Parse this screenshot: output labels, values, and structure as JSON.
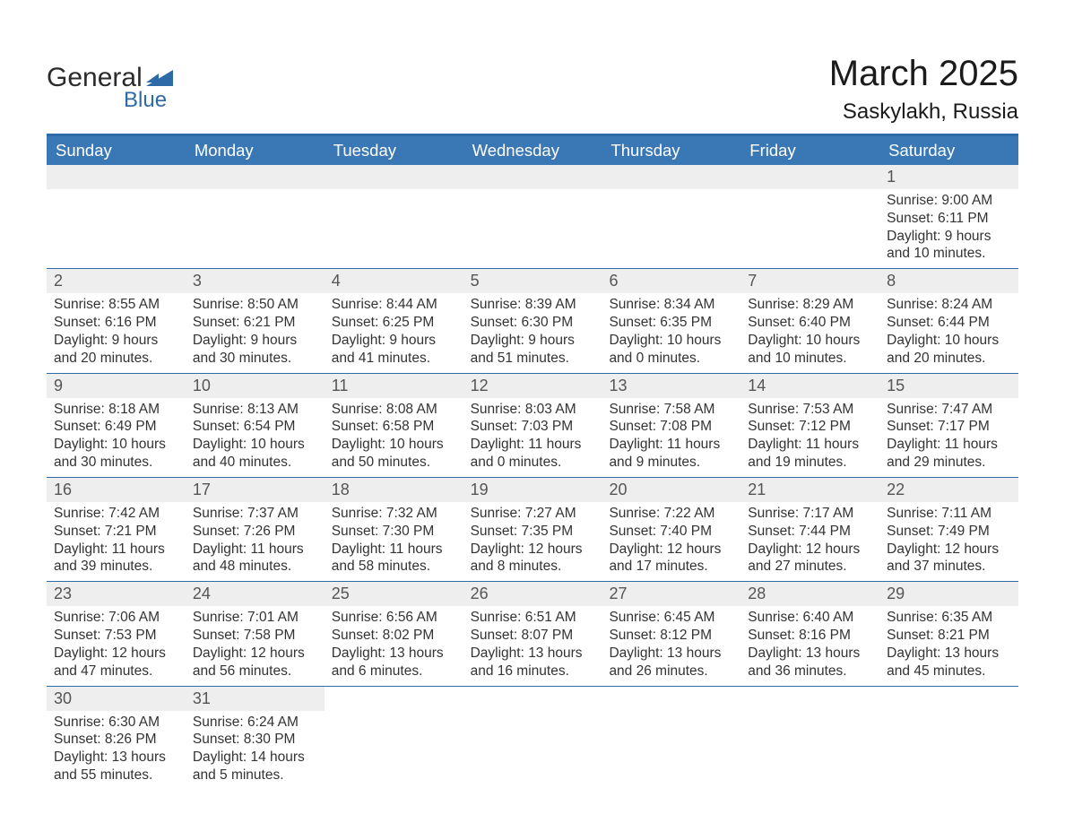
{
  "logo": {
    "text_top": "General",
    "text_bottom": "Blue",
    "mark_color": "#2f6aa8"
  },
  "title": {
    "month": "March 2025",
    "location": "Saskylakh, Russia"
  },
  "colors": {
    "header_bar": "#3a77b5",
    "header_rule": "#2f6aa8",
    "daynum_bg": "#eeeeee",
    "daynum_fg": "#555555",
    "body_fg": "#333333",
    "dow_fg": "#ffffff",
    "page_bg": "#ffffff"
  },
  "days_of_week": [
    "Sunday",
    "Monday",
    "Tuesday",
    "Wednesday",
    "Thursday",
    "Friday",
    "Saturday"
  ],
  "weeks": [
    [
      null,
      null,
      null,
      null,
      null,
      null,
      {
        "n": "1",
        "sunrise": "9:00 AM",
        "sunset": "6:11 PM",
        "daylight_h": "9",
        "daylight_m": "10"
      }
    ],
    [
      {
        "n": "2",
        "sunrise": "8:55 AM",
        "sunset": "6:16 PM",
        "daylight_h": "9",
        "daylight_m": "20"
      },
      {
        "n": "3",
        "sunrise": "8:50 AM",
        "sunset": "6:21 PM",
        "daylight_h": "9",
        "daylight_m": "30"
      },
      {
        "n": "4",
        "sunrise": "8:44 AM",
        "sunset": "6:25 PM",
        "daylight_h": "9",
        "daylight_m": "41"
      },
      {
        "n": "5",
        "sunrise": "8:39 AM",
        "sunset": "6:30 PM",
        "daylight_h": "9",
        "daylight_m": "51"
      },
      {
        "n": "6",
        "sunrise": "8:34 AM",
        "sunset": "6:35 PM",
        "daylight_h": "10",
        "daylight_m": "0"
      },
      {
        "n": "7",
        "sunrise": "8:29 AM",
        "sunset": "6:40 PM",
        "daylight_h": "10",
        "daylight_m": "10"
      },
      {
        "n": "8",
        "sunrise": "8:24 AM",
        "sunset": "6:44 PM",
        "daylight_h": "10",
        "daylight_m": "20"
      }
    ],
    [
      {
        "n": "9",
        "sunrise": "8:18 AM",
        "sunset": "6:49 PM",
        "daylight_h": "10",
        "daylight_m": "30"
      },
      {
        "n": "10",
        "sunrise": "8:13 AM",
        "sunset": "6:54 PM",
        "daylight_h": "10",
        "daylight_m": "40"
      },
      {
        "n": "11",
        "sunrise": "8:08 AM",
        "sunset": "6:58 PM",
        "daylight_h": "10",
        "daylight_m": "50"
      },
      {
        "n": "12",
        "sunrise": "8:03 AM",
        "sunset": "7:03 PM",
        "daylight_h": "11",
        "daylight_m": "0"
      },
      {
        "n": "13",
        "sunrise": "7:58 AM",
        "sunset": "7:08 PM",
        "daylight_h": "11",
        "daylight_m": "9"
      },
      {
        "n": "14",
        "sunrise": "7:53 AM",
        "sunset": "7:12 PM",
        "daylight_h": "11",
        "daylight_m": "19"
      },
      {
        "n": "15",
        "sunrise": "7:47 AM",
        "sunset": "7:17 PM",
        "daylight_h": "11",
        "daylight_m": "29"
      }
    ],
    [
      {
        "n": "16",
        "sunrise": "7:42 AM",
        "sunset": "7:21 PM",
        "daylight_h": "11",
        "daylight_m": "39"
      },
      {
        "n": "17",
        "sunrise": "7:37 AM",
        "sunset": "7:26 PM",
        "daylight_h": "11",
        "daylight_m": "48"
      },
      {
        "n": "18",
        "sunrise": "7:32 AM",
        "sunset": "7:30 PM",
        "daylight_h": "11",
        "daylight_m": "58"
      },
      {
        "n": "19",
        "sunrise": "7:27 AM",
        "sunset": "7:35 PM",
        "daylight_h": "12",
        "daylight_m": "8"
      },
      {
        "n": "20",
        "sunrise": "7:22 AM",
        "sunset": "7:40 PM",
        "daylight_h": "12",
        "daylight_m": "17"
      },
      {
        "n": "21",
        "sunrise": "7:17 AM",
        "sunset": "7:44 PM",
        "daylight_h": "12",
        "daylight_m": "27"
      },
      {
        "n": "22",
        "sunrise": "7:11 AM",
        "sunset": "7:49 PM",
        "daylight_h": "12",
        "daylight_m": "37"
      }
    ],
    [
      {
        "n": "23",
        "sunrise": "7:06 AM",
        "sunset": "7:53 PM",
        "daylight_h": "12",
        "daylight_m": "47"
      },
      {
        "n": "24",
        "sunrise": "7:01 AM",
        "sunset": "7:58 PM",
        "daylight_h": "12",
        "daylight_m": "56"
      },
      {
        "n": "25",
        "sunrise": "6:56 AM",
        "sunset": "8:02 PM",
        "daylight_h": "13",
        "daylight_m": "6"
      },
      {
        "n": "26",
        "sunrise": "6:51 AM",
        "sunset": "8:07 PM",
        "daylight_h": "13",
        "daylight_m": "16"
      },
      {
        "n": "27",
        "sunrise": "6:45 AM",
        "sunset": "8:12 PM",
        "daylight_h": "13",
        "daylight_m": "26"
      },
      {
        "n": "28",
        "sunrise": "6:40 AM",
        "sunset": "8:16 PM",
        "daylight_h": "13",
        "daylight_m": "36"
      },
      {
        "n": "29",
        "sunrise": "6:35 AM",
        "sunset": "8:21 PM",
        "daylight_h": "13",
        "daylight_m": "45"
      }
    ],
    [
      {
        "n": "30",
        "sunrise": "6:30 AM",
        "sunset": "8:26 PM",
        "daylight_h": "13",
        "daylight_m": "55"
      },
      {
        "n": "31",
        "sunrise": "6:24 AM",
        "sunset": "8:30 PM",
        "daylight_h": "14",
        "daylight_m": "5"
      },
      null,
      null,
      null,
      null,
      null
    ]
  ],
  "labels": {
    "sunrise": "Sunrise:",
    "sunset": "Sunset:",
    "daylight": "Daylight:",
    "hours": "hours",
    "and": "and",
    "minutes": "minutes."
  }
}
